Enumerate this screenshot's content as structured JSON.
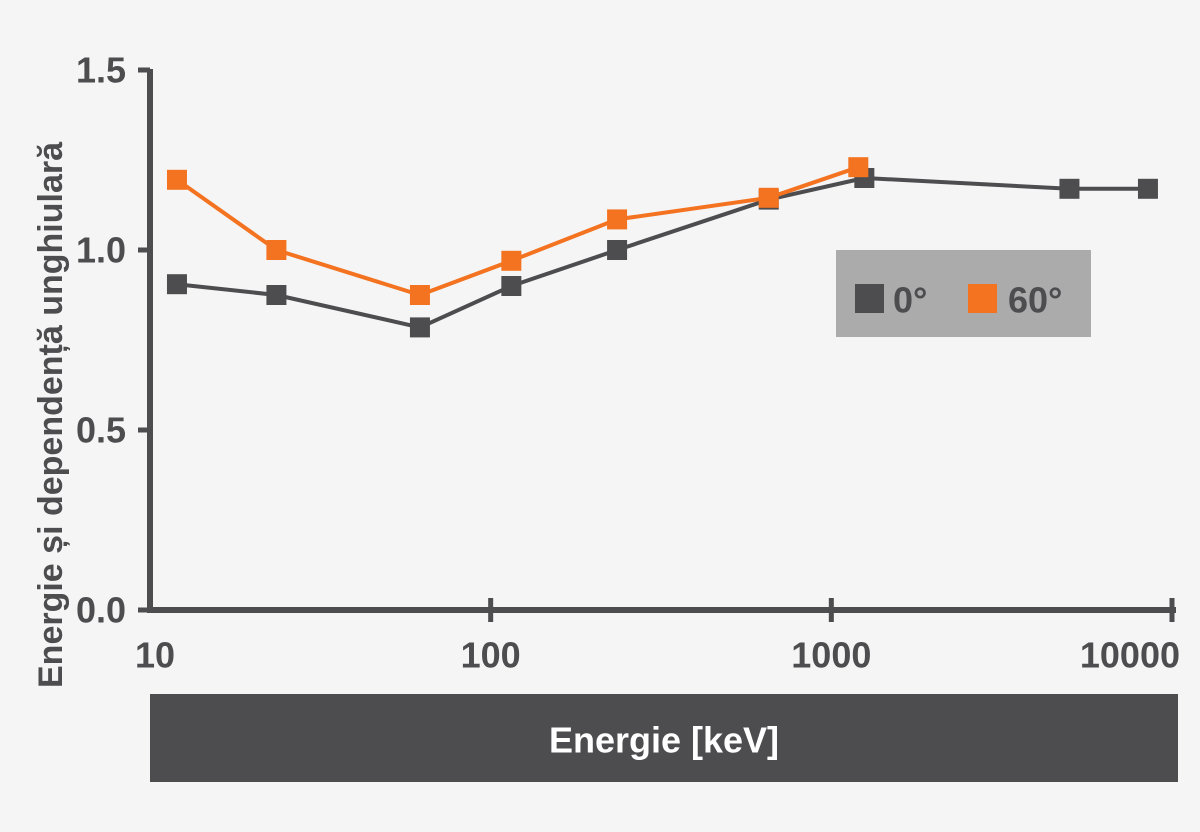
{
  "chart_data": {
    "type": "line",
    "title": "",
    "xlabel": "Energie [keV]",
    "ylabel": "Energie și dependență unghiulară",
    "x_scale": "log",
    "xlim": [
      10,
      10000
    ],
    "ylim": [
      0,
      1.5
    ],
    "x_ticks": [
      10,
      100,
      1000,
      10000
    ],
    "x_tick_labels": [
      "10",
      "100",
      "1000",
      "10000"
    ],
    "y_ticks": [
      0,
      0.5,
      1.0,
      1.5
    ],
    "y_tick_labels": [
      "0.0",
      "0.5",
      "1.0",
      "1.5"
    ],
    "grid": false,
    "legend_position": "right",
    "series": [
      {
        "name": "0°",
        "color": "#4d4d4f",
        "points": [
          {
            "x": 12,
            "y": 0.905
          },
          {
            "x": 23.5,
            "y": 0.875
          },
          {
            "x": 62,
            "y": 0.785
          },
          {
            "x": 115,
            "y": 0.9
          },
          {
            "x": 235,
            "y": 1.0
          },
          {
            "x": 655,
            "y": 1.14
          },
          {
            "x": 1250,
            "y": 1.2
          },
          {
            "x": 5000,
            "y": 1.17
          },
          {
            "x": 8500,
            "y": 1.17
          }
        ]
      },
      {
        "name": "60°",
        "color": "#f47321",
        "points": [
          {
            "x": 12,
            "y": 1.195
          },
          {
            "x": 23.5,
            "y": 1.0
          },
          {
            "x": 62,
            "y": 0.875
          },
          {
            "x": 115,
            "y": 0.97
          },
          {
            "x": 235,
            "y": 1.085
          },
          {
            "x": 655,
            "y": 1.145
          },
          {
            "x": 1200,
            "y": 1.23
          }
        ]
      }
    ]
  },
  "colors": {
    "background": "#f5f5f5",
    "axis": "#4d4d4f",
    "legend_background": "#ababac",
    "xlabel_bar": "#4d4d4f"
  }
}
